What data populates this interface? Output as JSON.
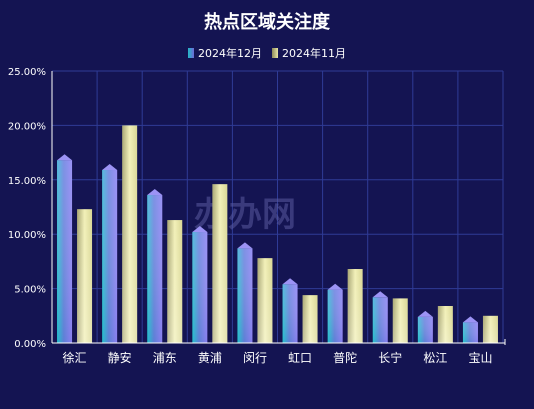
{
  "chart_data": {
    "type": "bar",
    "title": "热点区域关注度",
    "categories": [
      "徐汇",
      "静安",
      "浦东",
      "黄浦",
      "闵行",
      "虹口",
      "普陀",
      "长宁",
      "松江",
      "宝山"
    ],
    "series": [
      {
        "name": "2024年12月",
        "values": [
          16.8,
          15.9,
          13.6,
          10.2,
          8.7,
          5.4,
          4.9,
          4.2,
          2.4,
          1.9
        ],
        "color": "#6d6ad8"
      },
      {
        "name": "2024年11月",
        "values": [
          12.3,
          20.0,
          11.3,
          14.6,
          7.8,
          4.4,
          6.8,
          4.1,
          3.4,
          2.5
        ],
        "color": "#e8e6a6"
      }
    ],
    "yticks": [
      "0.00%",
      "5.00%",
      "10.00%",
      "15.00%",
      "20.00%",
      "25.00%"
    ],
    "ylim": [
      0,
      25
    ],
    "grid": true,
    "legend_position": "top-center",
    "watermark": "办办网"
  },
  "colors": {
    "background": "#141452",
    "grid": "#2f3b96",
    "axis": "#ffffff"
  }
}
